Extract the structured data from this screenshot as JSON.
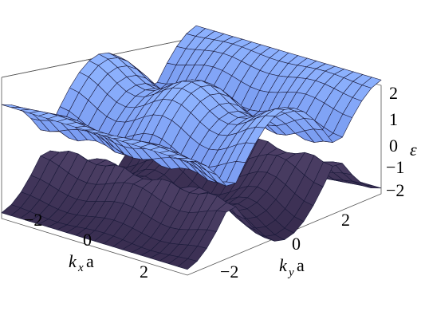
{
  "chart_data": {
    "type": "surface3d",
    "title": "",
    "function": "two sheets: ε = ± (cos(kx·a) + cos(ky·a) + ... ) — sinusoidal band surfaces",
    "x_axis": {
      "label_main": "k",
      "label_sub": "x",
      "label_suffix": "a",
      "ticks": [
        "−2",
        "0",
        "2"
      ],
      "range": [
        -3.14,
        3.14
      ]
    },
    "y_axis": {
      "label_main": "k",
      "label_sub": "y",
      "label_suffix": "a",
      "ticks": [
        "−2",
        "0",
        "2"
      ],
      "range": [
        -3.14,
        3.14
      ]
    },
    "z_axis": {
      "label": "ε",
      "ticks": [
        "2",
        "1",
        "0",
        "−1",
        "−2"
      ],
      "range": [
        -2.2,
        2.2
      ]
    },
    "series": [
      {
        "sheet": "upper",
        "color_top": "#8fb4ff",
        "color_bottom": "#3b55c8"
      },
      {
        "sheet": "lower",
        "color_top": "#6a5a86",
        "color_bottom": "#2a2040"
      }
    ],
    "grid": true
  }
}
